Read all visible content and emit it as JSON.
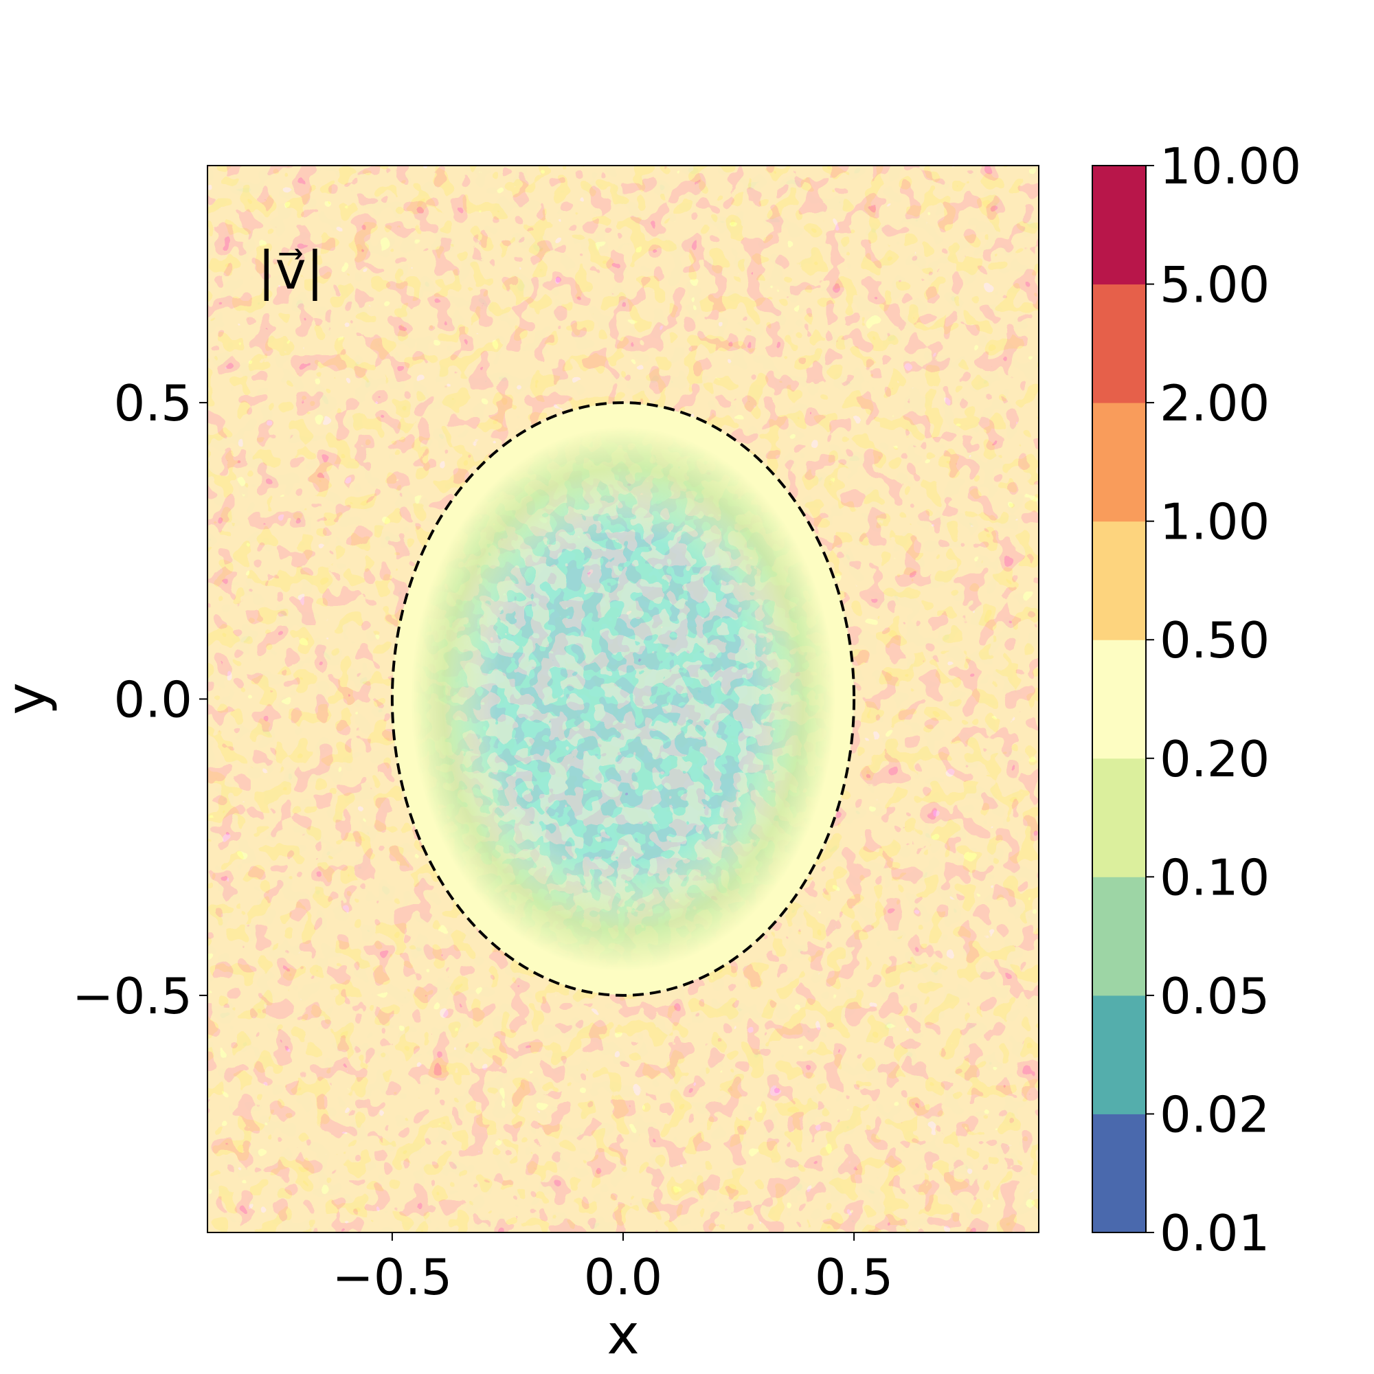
{
  "chart_data": {
    "type": "heatmap",
    "subtype": "filled-contour",
    "annotation": "|v⃗|",
    "xlabel": "x",
    "ylabel": "y",
    "xlim": [
      -0.9,
      0.9
    ],
    "ylim": [
      -0.9,
      0.9
    ],
    "xticks": [
      -0.5,
      0.0,
      0.5
    ],
    "yticks": [
      -0.5,
      0.0,
      0.5
    ],
    "xtick_labels": [
      "−0.5",
      "0.0",
      "0.5"
    ],
    "ytick_labels": [
      "−0.5",
      "0.0",
      "0.5"
    ],
    "grid": false,
    "colorbar": {
      "levels": [
        0.01,
        0.02,
        0.05,
        0.1,
        0.2,
        0.5,
        1.0,
        2.0,
        5.0,
        10.0
      ],
      "labels": [
        "0.01",
        "0.02",
        "0.05",
        "0.10",
        "0.20",
        "0.50",
        "1.00",
        "2.00",
        "5.00",
        "10.00"
      ],
      "colors": [
        "#4a69ad",
        "#54aeac",
        "#9dd5a5",
        "#dbef9d",
        "#fdfdc2",
        "#fdd47e",
        "#f99c5b",
        "#e6604a",
        "#b8164a"
      ],
      "scale": "log-like"
    },
    "region_boundary": {
      "shape": "ellipse",
      "center": [
        0.0,
        0.0
      ],
      "semi_axis_x": 0.5,
      "semi_axis_y": 0.5,
      "style": "dashed",
      "color": "#000000"
    },
    "field_summary": {
      "inside_boundary": "low magnitude, approximately 0.02–0.5, lowest near center",
      "outside_boundary": "high magnitude, approximately 0.2–5"
    }
  }
}
